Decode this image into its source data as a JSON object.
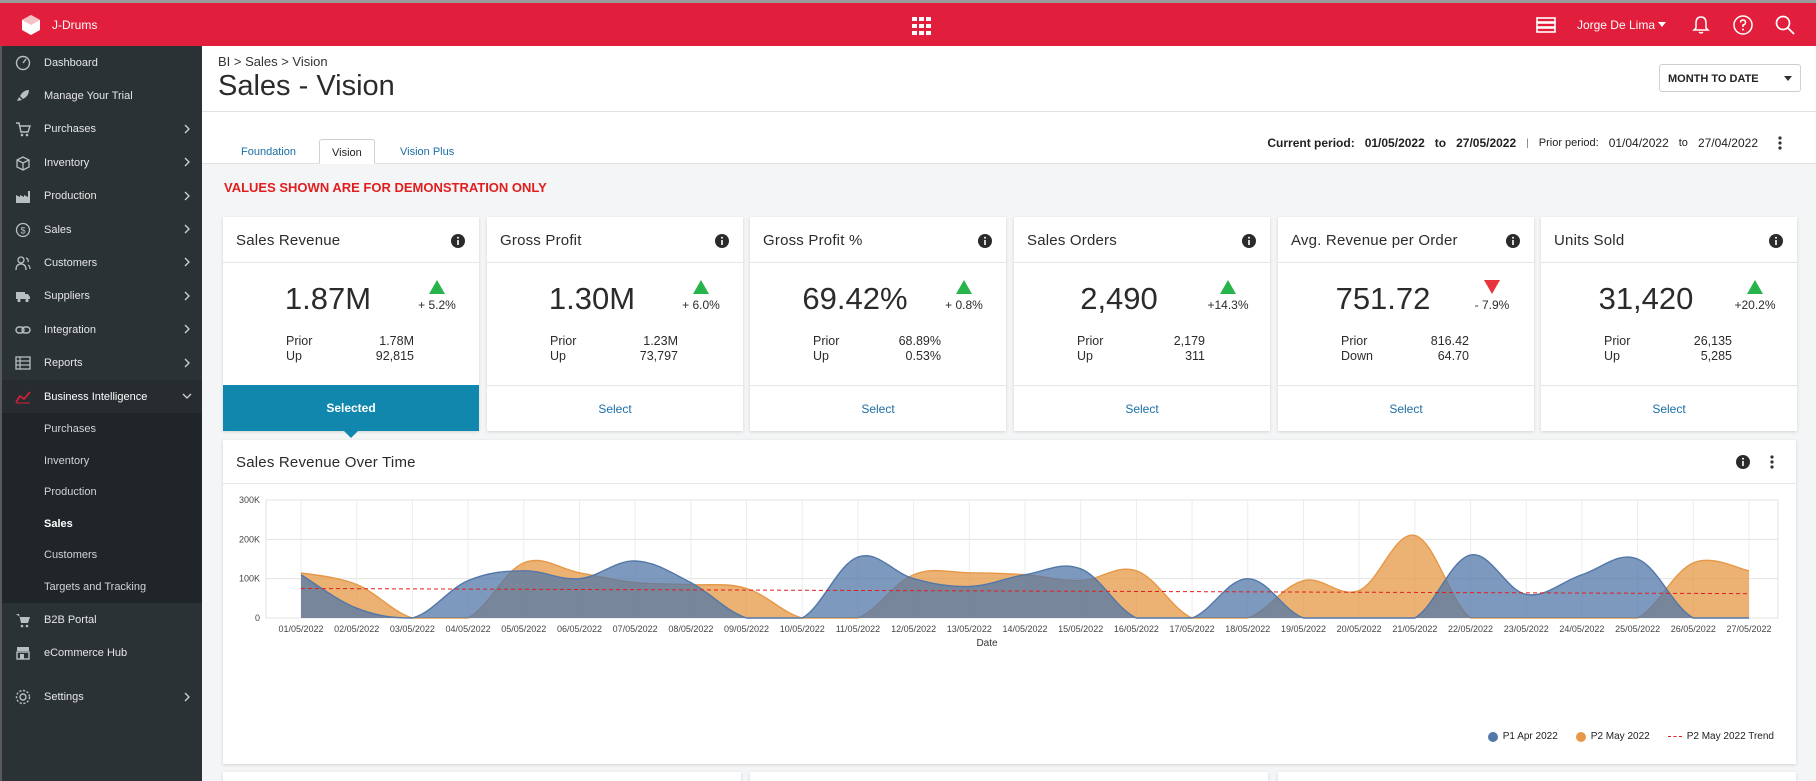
{
  "app": {
    "name": "J-Drums"
  },
  "topbar": {
    "user": "Jorge De Lima"
  },
  "sidebar": {
    "items": [
      {
        "label": "Dashboard",
        "icon": "gauge-icon",
        "chevron": false
      },
      {
        "label": "Manage Your Trial",
        "icon": "rocket-icon",
        "chevron": false
      },
      {
        "label": "Purchases",
        "icon": "cart-icon",
        "chevron": true
      },
      {
        "label": "Inventory",
        "icon": "box-icon",
        "chevron": true
      },
      {
        "label": "Production",
        "icon": "factory-icon",
        "chevron": true
      },
      {
        "label": "Sales",
        "icon": "dollar-icon",
        "chevron": true
      },
      {
        "label": "Customers",
        "icon": "customers-icon",
        "chevron": true
      },
      {
        "label": "Suppliers",
        "icon": "truck-icon",
        "chevron": true
      },
      {
        "label": "Integration",
        "icon": "link-icon",
        "chevron": true
      },
      {
        "label": "Reports",
        "icon": "table-icon",
        "chevron": true
      }
    ],
    "bi": {
      "label": "Business Intelligence"
    },
    "bi_sub": [
      {
        "label": "Purchases",
        "active": false
      },
      {
        "label": "Inventory",
        "active": false
      },
      {
        "label": "Production",
        "active": false
      },
      {
        "label": "Sales",
        "active": true
      },
      {
        "label": "Customers",
        "active": false
      },
      {
        "label": "Targets and Tracking",
        "active": false
      }
    ],
    "after": [
      {
        "label": "B2B Portal",
        "icon": "cart-b2b-icon",
        "chevron": false
      },
      {
        "label": "eCommerce Hub",
        "icon": "store-icon",
        "chevron": false
      }
    ],
    "settings": {
      "label": "Settings"
    }
  },
  "header": {
    "breadcrumb": "BI > Sales > Vision",
    "title": "Sales - Vision",
    "period_select": "MONTH TO DATE"
  },
  "tabs": [
    {
      "label": "Foundation",
      "active": false
    },
    {
      "label": "Vision",
      "active": true
    },
    {
      "label": "Vision Plus",
      "active": false
    }
  ],
  "periods": {
    "current_label": "Current period:",
    "current_from": "01/05/2022",
    "to": "to",
    "current_to": "27/05/2022",
    "sep": "|",
    "prior_label": "Prior period:",
    "prior_from": "01/04/2022",
    "prior_to": "27/04/2022"
  },
  "demo_warning": "VALUES SHOWN ARE FOR DEMONSTRATION ONLY",
  "kpis": [
    {
      "title": "Sales Revenue",
      "value": "1.87M",
      "direction": "up",
      "change": "+ 5.2%",
      "prior_label": "Prior",
      "prior": "1.78M",
      "delta_label": "Up",
      "delta": "92,815",
      "select": "Selected",
      "selected": true
    },
    {
      "title": "Gross Profit",
      "value": "1.30M",
      "direction": "up",
      "change": "+ 6.0%",
      "prior_label": "Prior",
      "prior": "1.23M",
      "delta_label": "Up",
      "delta": "73,797",
      "select": "Select",
      "selected": false
    },
    {
      "title": "Gross Profit %",
      "value": "69.42%",
      "direction": "up",
      "change": "+ 0.8%",
      "prior_label": "Prior",
      "prior": "68.89%",
      "delta_label": "Up",
      "delta": "0.53%",
      "select": "Select",
      "selected": false
    },
    {
      "title": "Sales Orders",
      "value": "2,490",
      "direction": "up",
      "change": "+14.3%",
      "prior_label": "Prior",
      "prior": "2,179",
      "delta_label": "Up",
      "delta": "311",
      "select": "Select",
      "selected": false
    },
    {
      "title": "Avg. Revenue per Order",
      "value": "751.72",
      "direction": "down",
      "change": "- 7.9%",
      "prior_label": "Prior",
      "prior": "816.42",
      "delta_label": "Down",
      "delta": "64.70",
      "select": "Select",
      "selected": false
    },
    {
      "title": "Units Sold",
      "value": "31,420",
      "direction": "up",
      "change": "+20.2%",
      "prior_label": "Prior",
      "prior": "26,135",
      "delta_label": "Up",
      "delta": "5,285",
      "select": "Select",
      "selected": false
    }
  ],
  "colors": {
    "brand": "#e11e3b",
    "up": "#27b44a",
    "down": "#e8343c",
    "p1": "#5277a8",
    "p2": "#e69846",
    "trend": "#e11e1e",
    "selected": "#1287ad"
  },
  "chart_title": "Sales Revenue Over Time",
  "chart_data": {
    "type": "area",
    "xlabel": "Date",
    "ylabel": "",
    "ylim": [
      0,
      300000
    ],
    "yticks": [
      "0",
      "100K",
      "200K",
      "300K"
    ],
    "grid": true,
    "legend_position": "bottom-right",
    "categories": [
      "01/05/2022",
      "02/05/2022",
      "03/05/2022",
      "04/05/2022",
      "05/05/2022",
      "06/05/2022",
      "07/05/2022",
      "08/05/2022",
      "09/05/2022",
      "10/05/2022",
      "11/05/2022",
      "12/05/2022",
      "13/05/2022",
      "14/05/2022",
      "15/05/2022",
      "16/05/2022",
      "17/05/2022",
      "18/05/2022",
      "19/05/2022",
      "20/05/2022",
      "21/05/2022",
      "22/05/2022",
      "23/05/2022",
      "24/05/2022",
      "25/05/2022",
      "26/05/2022",
      "27/05/2022"
    ],
    "series": [
      {
        "name": "P1 Apr 2022",
        "values": [
          110000,
          25000,
          0,
          95000,
          120000,
          100000,
          145000,
          90000,
          0,
          0,
          155000,
          100000,
          80000,
          110000,
          125000,
          0,
          0,
          100000,
          0,
          0,
          0,
          160000,
          60000,
          110000,
          150000,
          0,
          0
        ]
      },
      {
        "name": "P2 May 2022",
        "values": [
          115000,
          85000,
          0,
          0,
          140000,
          115000,
          90000,
          85000,
          75000,
          0,
          0,
          110000,
          115000,
          110000,
          95000,
          120000,
          0,
          0,
          95000,
          70000,
          210000,
          0,
          0,
          0,
          0,
          140000,
          120000
        ]
      },
      {
        "name": "P2 May 2022 Trend",
        "values": [
          75000,
          74500,
          74000,
          73500,
          73000,
          72500,
          72000,
          71500,
          71000,
          70500,
          70000,
          69500,
          69000,
          68500,
          68000,
          67500,
          67000,
          66500,
          66000,
          65500,
          65000,
          64500,
          64000,
          63500,
          63000,
          62500,
          62000
        ]
      }
    ]
  }
}
